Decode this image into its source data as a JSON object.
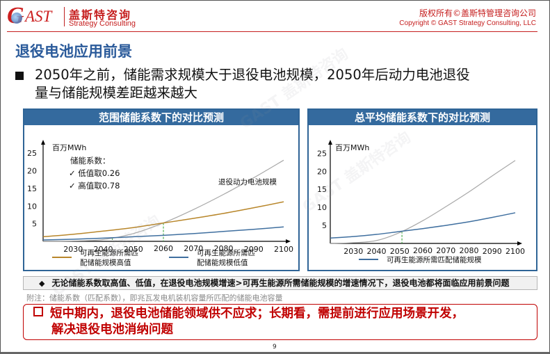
{
  "header": {
    "logo_text": "GAST",
    "brand_cn": "盖斯特咨询",
    "brand_en": "Strategy Consulting",
    "copyright_cn": "版权所有©盖斯特管理咨询公司",
    "copyright_en": "Copyright © GAST Strategy Consulting, LLC"
  },
  "page_title": "退役电池应用前景",
  "bullet": {
    "line1": "2050年之前，储能需求规模大于退役电池规模，2050年后动力电池退役",
    "line2": "量与储能规模差距越来越大"
  },
  "colors": {
    "brand_red": "#c51d1d",
    "title_blue": "#2a5a9a",
    "panel_blue": "#346a9e",
    "series_high": "#b8862a",
    "series_low": "#3f6f9f",
    "series_battery": "#a8a8a8",
    "crossover_marker": "#2ca02c"
  },
  "chart_data": [
    {
      "type": "line",
      "title": "范围储能系数下的对比预测",
      "ylabel": "百万MWh",
      "xlabel": "",
      "x_ticks": [
        2030,
        2040,
        2050,
        2060,
        2070,
        2080,
        2090,
        2100
      ],
      "y_ticks": [
        5,
        10,
        15,
        20,
        25
      ],
      "xlim": [
        2020,
        2100
      ],
      "ylim": [
        0,
        27
      ],
      "annotation_title": "储能系数：",
      "annotation_items": [
        "✓ 低值取0.26",
        "✓ 高值取0.78"
      ],
      "battery_label": "退役动力电池规模",
      "crossovers": [
        2043,
        2060
      ],
      "x": [
        2020,
        2030,
        2040,
        2050,
        2060,
        2070,
        2080,
        2090,
        2100
      ],
      "series": [
        {
          "name": "退役动力电池规模",
          "key": "battery",
          "values": [
            0.0,
            0.1,
            0.5,
            2.2,
            5.2,
            9.0,
            13.3,
            18.0,
            23.0
          ]
        },
        {
          "name": "可再生能源所需匹配储能规模高值",
          "key": "high",
          "values": [
            1.3,
            2.0,
            2.9,
            3.9,
            5.2,
            6.5,
            7.9,
            9.5,
            11.2
          ]
        },
        {
          "name": "可再生能源所需匹配储能规模低值",
          "key": "low",
          "values": [
            0.4,
            0.6,
            0.9,
            1.3,
            1.7,
            2.2,
            2.8,
            3.4,
            4.1
          ]
        }
      ],
      "legend": [
        {
          "label_line1": "可再生能源所需匹",
          "label_line2": "配储能规模高值",
          "key": "high"
        },
        {
          "label_line1": "可再生能源所需匹",
          "label_line2": "配储能规模低值",
          "key": "low"
        }
      ],
      "legend_position": "bottom",
      "grid": false
    },
    {
      "type": "line",
      "title": "总平均储能系数下的对比预测",
      "ylabel": "百万MWh",
      "xlabel": "",
      "x_ticks": [
        2030,
        2040,
        2050,
        2060,
        2070,
        2080,
        2090,
        2100
      ],
      "y_ticks": [
        5,
        10,
        15,
        20,
        25
      ],
      "xlim": [
        2020,
        2100
      ],
      "ylim": [
        0,
        27
      ],
      "crossovers": [
        2051
      ],
      "x": [
        2020,
        2030,
        2040,
        2050,
        2060,
        2070,
        2080,
        2090,
        2100
      ],
      "series": [
        {
          "name": "退役动力电池规模",
          "key": "battery",
          "values": [
            0.0,
            0.2,
            0.8,
            3.0,
            6.3,
            10.2,
            14.3,
            18.7,
            23.0
          ]
        },
        {
          "name": "可再生能源所需匹配储能规模",
          "key": "low",
          "values": [
            1.5,
            1.9,
            2.5,
            3.3,
            4.1,
            5.0,
            6.0,
            7.2,
            8.5
          ]
        }
      ],
      "legend": [
        {
          "label_line1": "可再生能源所需匹配储能规模",
          "label_line2": "",
          "key": "low"
        }
      ],
      "legend_position": "bottom",
      "grid": false
    }
  ],
  "callout": {
    "icon": "diamond-bullet",
    "text": "无论储能系数取高值、低值，在退役电池规模增速>可再生能源所需储能规模的增速情况下，退役电池都将面临应用前景问题"
  },
  "footnote": "附注：储能系数（匹配系数），即兆瓦发电机装机容量所匹配的储能电池容量",
  "conclusion": {
    "line1": "短中期内，退役电池储能领域供不应求；长期看，需提前进行应用场景开发，",
    "line2": "解决退役电池消纳问题"
  },
  "page_number": "9",
  "watermark_text": "GAST 盖斯特咨询"
}
